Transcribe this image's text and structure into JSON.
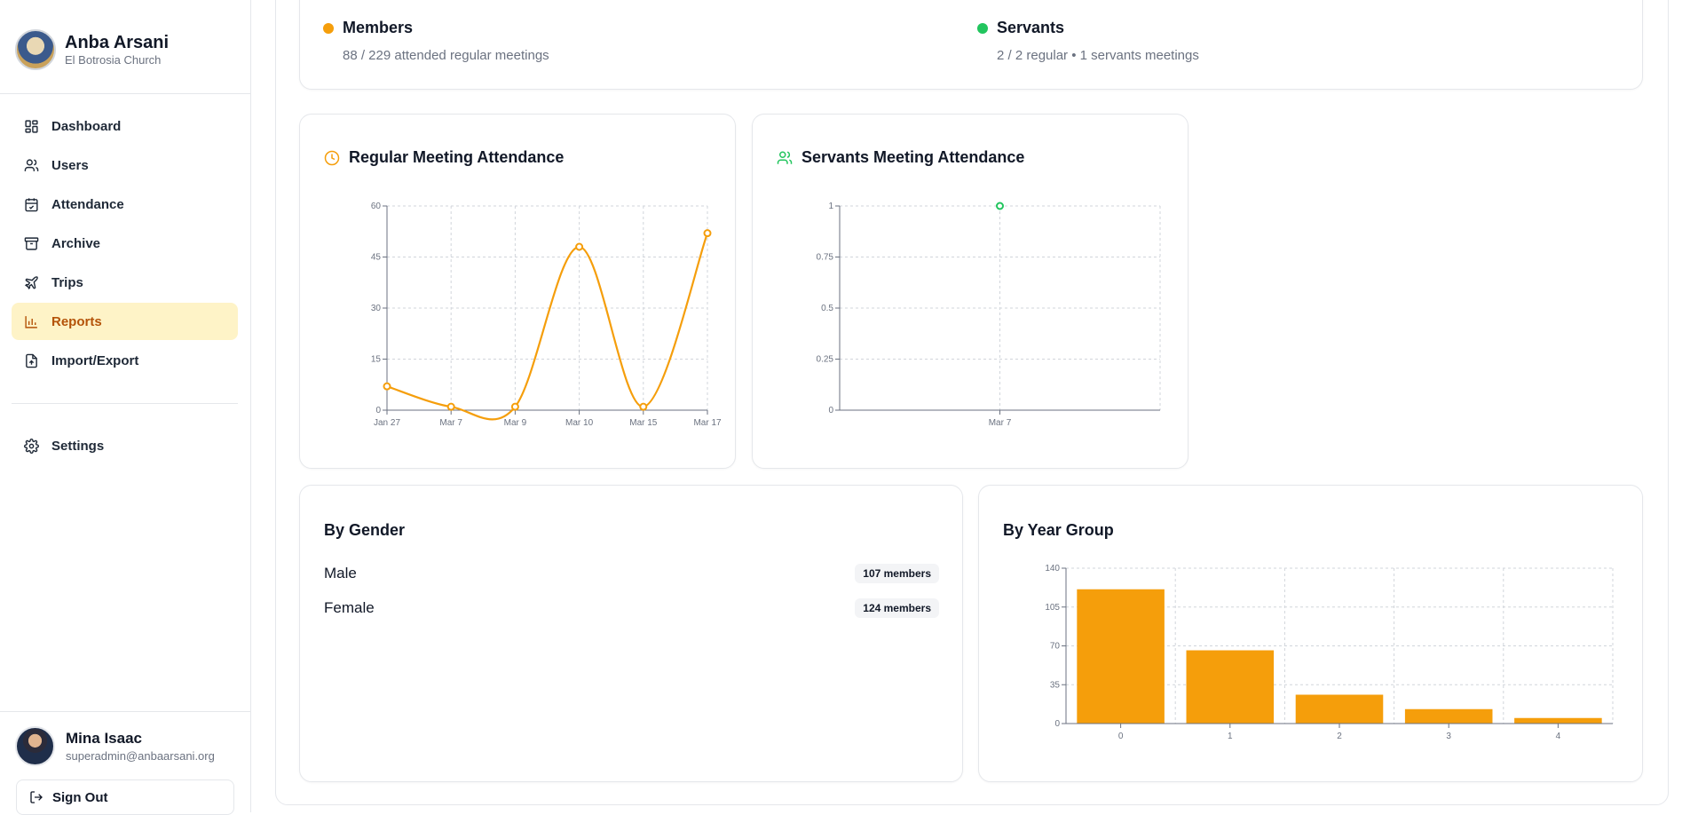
{
  "brand": {
    "title": "Anba Arsani",
    "subtitle": "El Botrosia Church"
  },
  "nav": [
    {
      "label": "Dashboard",
      "icon": "dashboard-icon"
    },
    {
      "label": "Users",
      "icon": "users-icon"
    },
    {
      "label": "Attendance",
      "icon": "calendar-check-icon"
    },
    {
      "label": "Archive",
      "icon": "archive-icon"
    },
    {
      "label": "Trips",
      "icon": "plane-icon"
    },
    {
      "label": "Reports",
      "icon": "bar-chart-icon",
      "active": true
    },
    {
      "label": "Import/Export",
      "icon": "file-upload-icon"
    }
  ],
  "settings": {
    "label": "Settings",
    "icon": "gear-icon"
  },
  "user": {
    "name": "Mina Isaac",
    "email": "superadmin@anbaarsani.org"
  },
  "signout_label": "Sign Out",
  "summary": {
    "members": {
      "title": "Members",
      "subtitle": "88 / 229 attended regular meetings",
      "color": "#f59e0b"
    },
    "servants": {
      "title": "Servants",
      "subtitle": "2 / 2 regular • 1 servants meetings",
      "color": "#22c55e"
    }
  },
  "regular_card": {
    "title": "Regular Meeting Attendance"
  },
  "servants_card": {
    "title": "Servants Meeting Attendance"
  },
  "gender_card": {
    "title": "By Gender",
    "rows": [
      {
        "label": "Male",
        "badge": "107 members"
      },
      {
        "label": "Female",
        "badge": "124 members"
      }
    ]
  },
  "year_card": {
    "title": "By Year Group"
  },
  "chart_data": [
    {
      "type": "line",
      "title": "Regular Meeting Attendance",
      "x": [
        "Jan 27",
        "Mar 7",
        "Mar 9",
        "Mar 10",
        "Mar 15",
        "Mar 17"
      ],
      "values": [
        7,
        1,
        1,
        48,
        1,
        52
      ],
      "ylim": [
        0,
        60
      ],
      "yticks": [
        0,
        15,
        30,
        45,
        60
      ],
      "grid": true,
      "color": "#f59e0b"
    },
    {
      "type": "line",
      "title": "Servants Meeting Attendance",
      "x": [
        "Mar 7"
      ],
      "values": [
        1
      ],
      "ylim": [
        0,
        1
      ],
      "yticks": [
        0,
        0.25,
        0.5,
        0.75,
        1
      ],
      "grid": true,
      "color": "#22c55e"
    },
    {
      "type": "bar",
      "title": "By Year Group",
      "categories": [
        "0",
        "1",
        "2",
        "3",
        "4"
      ],
      "values": [
        121,
        66,
        26,
        13,
        5
      ],
      "ylim": [
        0,
        140
      ],
      "yticks": [
        0,
        35,
        70,
        105,
        140
      ],
      "grid": true,
      "color": "#f59e0b"
    }
  ]
}
